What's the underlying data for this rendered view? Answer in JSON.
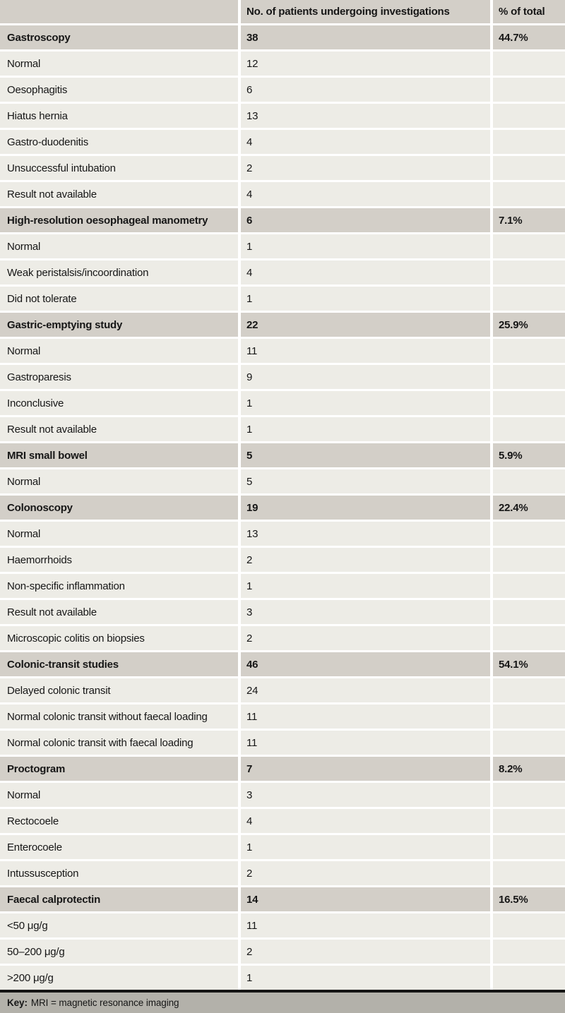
{
  "table": {
    "header": {
      "col1": "",
      "col2": "No. of patients undergoing investigations",
      "col3": "% of total"
    },
    "sections": [
      {
        "label": "Gastroscopy",
        "count": "38",
        "percent": "44.7%",
        "rows": [
          {
            "label": "Normal",
            "count": "12"
          },
          {
            "label": "Oesophagitis",
            "count": "6"
          },
          {
            "label": "Hiatus hernia",
            "count": "13"
          },
          {
            "label": "Gastro-duodenitis",
            "count": "4"
          },
          {
            "label": "Unsuccessful intubation",
            "count": "2"
          },
          {
            "label": "Result not available",
            "count": "4"
          }
        ]
      },
      {
        "label": "High-resolution oesophageal manometry",
        "count": "6",
        "percent": "7.1%",
        "rows": [
          {
            "label": "Normal",
            "count": "1"
          },
          {
            "label": "Weak peristalsis/incoordination",
            "count": "4"
          },
          {
            "label": "Did not tolerate",
            "count": "1"
          }
        ]
      },
      {
        "label": "Gastric-emptying study",
        "count": "22",
        "percent": "25.9%",
        "rows": [
          {
            "label": "Normal",
            "count": "11"
          },
          {
            "label": "Gastroparesis",
            "count": "9"
          },
          {
            "label": "Inconclusive",
            "count": "1"
          },
          {
            "label": "Result not available",
            "count": "1"
          }
        ]
      },
      {
        "label": "MRI small bowel",
        "count": "5",
        "percent": "5.9%",
        "rows": [
          {
            "label": "Normal",
            "count": "5"
          }
        ]
      },
      {
        "label": "Colonoscopy",
        "count": "19",
        "percent": "22.4%",
        "rows": [
          {
            "label": "Normal",
            "count": "13"
          },
          {
            "label": "Haemorrhoids",
            "count": "2"
          },
          {
            "label": "Non-specific inflammation",
            "count": "1"
          },
          {
            "label": "Result not available",
            "count": "3"
          },
          {
            "label": "Microscopic colitis on biopsies",
            "count": "2"
          }
        ]
      },
      {
        "label": "Colonic-transit studies",
        "count": "46",
        "percent": "54.1%",
        "rows": [
          {
            "label": "Delayed colonic transit",
            "count": "24"
          },
          {
            "label": "Normal colonic transit without faecal loading",
            "count": "11"
          },
          {
            "label": "Normal colonic transit with faecal loading",
            "count": "11"
          }
        ]
      },
      {
        "label": "Proctogram",
        "count": "7",
        "percent": "8.2%",
        "rows": [
          {
            "label": "Normal",
            "count": "3"
          },
          {
            "label": "Rectocoele",
            "count": "4"
          },
          {
            "label": "Enterocoele",
            "count": "1"
          },
          {
            "label": "Intussusception",
            "count": "2"
          }
        ]
      },
      {
        "label": "Faecal calprotectin",
        "count": "14",
        "percent": "16.5%",
        "rows": [
          {
            "label": "<50 μg/g",
            "count": "11"
          },
          {
            "label": "50–200 μg/g",
            "count": "2"
          },
          {
            "label": ">200 μg/g",
            "count": "1"
          }
        ]
      }
    ],
    "footer": {
      "key_label": "Key:",
      "key_text": "MRI = magnetic resonance imaging"
    }
  },
  "colors": {
    "section_bg": "#d3cfc8",
    "row_bg": "#edece6",
    "footer_bg": "#b3b1aa",
    "rule": "#141414",
    "text": "#161616",
    "gap": "#ffffff"
  }
}
